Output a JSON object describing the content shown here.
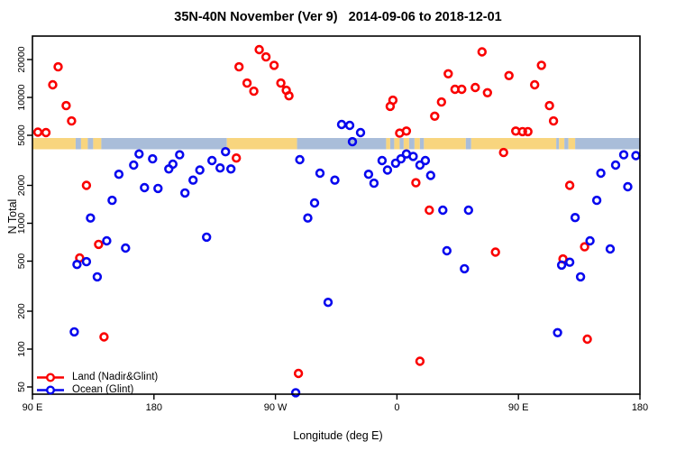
{
  "chart_data": {
    "type": "scatter",
    "title": "35N-40N November (Ver 9)   2014-09-06 to 2018-12-01",
    "xlabel": "Longitude (deg E)",
    "ylabel": "N Total",
    "x_axis": {
      "note": "longitude axis wraps eastward over 450 degrees",
      "span_deg": 450,
      "ticks": [
        {
          "label": "90 E",
          "deg": 0
        },
        {
          "label": "180",
          "deg": 90
        },
        {
          "label": "90 W",
          "deg": 180
        },
        {
          "label": "0",
          "deg": 270
        },
        {
          "label": "90 E",
          "deg": 360
        },
        {
          "label": "180",
          "deg": 450
        }
      ]
    },
    "y_axis": {
      "scale": "log",
      "ticks": [
        50,
        100,
        200,
        500,
        1000,
        2000,
        5000,
        10000,
        20000
      ],
      "range": [
        42,
        26000
      ]
    },
    "land_ocean_band": {
      "y_center_value": 5000,
      "colors": {
        "land": "#F8D57E",
        "ocean": "#A9BDD9"
      },
      "segments": [
        {
          "type": "land",
          "from": 0,
          "to": 32
        },
        {
          "type": "ocean",
          "from": 32,
          "to": 36
        },
        {
          "type": "land",
          "from": 36,
          "to": 41
        },
        {
          "type": "ocean",
          "from": 41,
          "to": 45
        },
        {
          "type": "land",
          "from": 45,
          "to": 51
        },
        {
          "type": "ocean",
          "from": 51,
          "to": 144
        },
        {
          "type": "land",
          "from": 144,
          "to": 196
        },
        {
          "type": "ocean",
          "from": 196,
          "to": 262
        },
        {
          "type": "land",
          "from": 262,
          "to": 265
        },
        {
          "type": "ocean",
          "from": 265,
          "to": 268
        },
        {
          "type": "land",
          "from": 268,
          "to": 272
        },
        {
          "type": "ocean",
          "from": 272,
          "to": 275
        },
        {
          "type": "land",
          "from": 275,
          "to": 279
        },
        {
          "type": "ocean",
          "from": 279,
          "to": 283
        },
        {
          "type": "land",
          "from": 283,
          "to": 287
        },
        {
          "type": "ocean",
          "from": 287,
          "to": 290
        },
        {
          "type": "land",
          "from": 290,
          "to": 321
        },
        {
          "type": "ocean",
          "from": 321,
          "to": 325
        },
        {
          "type": "land",
          "from": 325,
          "to": 388
        },
        {
          "type": "ocean",
          "from": 388,
          "to": 390
        },
        {
          "type": "land",
          "from": 390,
          "to": 394
        },
        {
          "type": "ocean",
          "from": 394,
          "to": 397
        },
        {
          "type": "land",
          "from": 397,
          "to": 402
        },
        {
          "type": "ocean",
          "from": 402,
          "to": 450
        }
      ]
    },
    "series": [
      {
        "name": "Land (Nadir&Glint)",
        "color": "#FA0000",
        "points": [
          [
            19,
            17500
          ],
          [
            15,
            12600
          ],
          [
            25,
            8600
          ],
          [
            29,
            6500
          ],
          [
            4,
            5300
          ],
          [
            10,
            5250
          ],
          [
            40,
            2000
          ],
          [
            49,
            680
          ],
          [
            35,
            530
          ],
          [
            53,
            125
          ],
          [
            151,
            3300
          ],
          [
            153,
            17500
          ],
          [
            159,
            13000
          ],
          [
            164,
            11200
          ],
          [
            168,
            24000
          ],
          [
            173,
            21000
          ],
          [
            179,
            18000
          ],
          [
            184,
            13000
          ],
          [
            188,
            11400
          ],
          [
            190,
            10300
          ],
          [
            197,
            64
          ],
          [
            265,
            8500
          ],
          [
            267,
            9500
          ],
          [
            272,
            5200
          ],
          [
            277,
            5400
          ],
          [
            284,
            2100
          ],
          [
            287,
            80
          ],
          [
            294,
            1270
          ],
          [
            298,
            7100
          ],
          [
            303,
            9200
          ],
          [
            308,
            15400
          ],
          [
            313,
            11600
          ],
          [
            318,
            11600
          ],
          [
            328,
            12000
          ],
          [
            333,
            23000
          ],
          [
            337,
            10900
          ],
          [
            343,
            590
          ],
          [
            349,
            3650
          ],
          [
            353,
            14900
          ],
          [
            358,
            5400
          ],
          [
            363,
            5350
          ],
          [
            367,
            5350
          ],
          [
            372,
            12600
          ],
          [
            377,
            18000
          ],
          [
            383,
            8600
          ],
          [
            386,
            6500
          ],
          [
            393,
            520
          ],
          [
            398,
            2000
          ],
          [
            409,
            650
          ],
          [
            411,
            120
          ]
        ]
      },
      {
        "name": "Ocean (Glint)",
        "color": "#0707EE",
        "points": [
          [
            79,
            3550
          ],
          [
            89,
            3250
          ],
          [
            109,
            3500
          ],
          [
            75,
            2900
          ],
          [
            101,
            2700
          ],
          [
            104,
            2950
          ],
          [
            64,
            2450
          ],
          [
            133,
            3150
          ],
          [
            143,
            3700
          ],
          [
            139,
            2750
          ],
          [
            147,
            2700
          ],
          [
            124,
            2650
          ],
          [
            119,
            2200
          ],
          [
            83,
            1920
          ],
          [
            93,
            1890
          ],
          [
            113,
            1740
          ],
          [
            59,
            1520
          ],
          [
            43,
            1100
          ],
          [
            229,
            6100
          ],
          [
            235,
            6000
          ],
          [
            243,
            5250
          ],
          [
            237,
            4450
          ],
          [
            198,
            3200
          ],
          [
            213,
            2500
          ],
          [
            224,
            2200
          ],
          [
            249,
            2450
          ],
          [
            253,
            2080
          ],
          [
            259,
            3150
          ],
          [
            263,
            2650
          ],
          [
            269,
            3000
          ],
          [
            273,
            3250
          ],
          [
            277,
            3550
          ],
          [
            282,
            3400
          ],
          [
            287,
            2900
          ],
          [
            291,
            3150
          ],
          [
            295,
            2400
          ],
          [
            209,
            1450
          ],
          [
            204,
            1100
          ],
          [
            438,
            3500
          ],
          [
            447,
            3450
          ],
          [
            432,
            2900
          ],
          [
            421,
            2500
          ],
          [
            441,
            1950
          ],
          [
            418,
            1520
          ],
          [
            304,
            1270
          ],
          [
            323,
            1270
          ],
          [
            402,
            1110
          ],
          [
            55,
            725
          ],
          [
            69,
            635
          ],
          [
            33,
            470
          ],
          [
            40,
            495
          ],
          [
            48,
            375
          ],
          [
            129,
            775
          ],
          [
            31,
            137
          ],
          [
            219,
            235
          ],
          [
            195,
            45
          ],
          [
            307,
            605
          ],
          [
            320,
            435
          ],
          [
            413,
            725
          ],
          [
            428,
            625
          ],
          [
            392,
            465
          ],
          [
            398,
            490
          ],
          [
            406,
            375
          ],
          [
            389,
            135
          ]
        ]
      }
    ],
    "legend_position": "bottom-left-inside"
  },
  "legend": {
    "items": [
      {
        "label": "Land (Nadir&Glint)",
        "color": "#FA0000"
      },
      {
        "label": "Ocean (Glint)",
        "color": "#0707EE"
      }
    ]
  }
}
